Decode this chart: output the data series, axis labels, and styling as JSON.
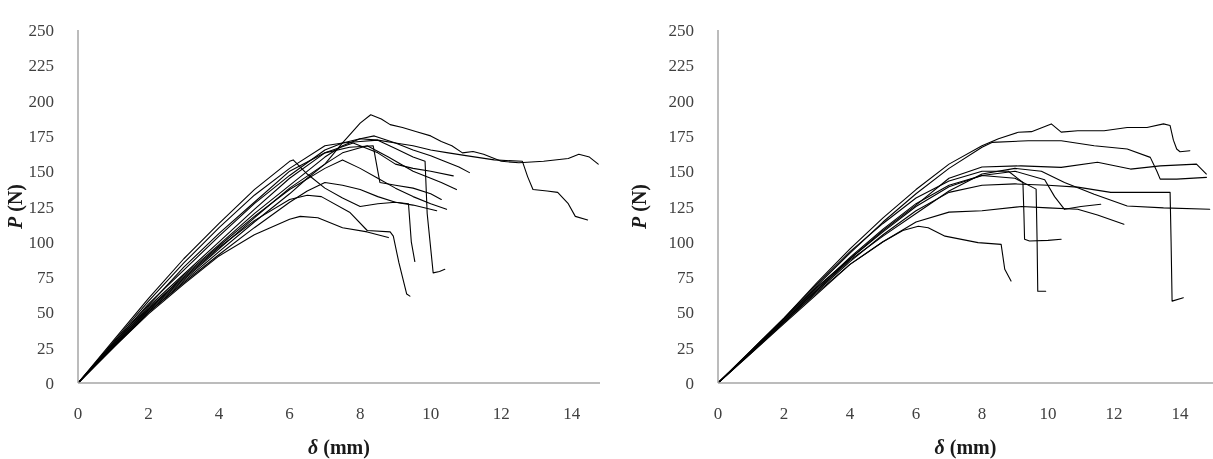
{
  "chart_data": [
    {
      "type": "line",
      "xlabel": "δ (mm)",
      "ylabel": "P (N)",
      "xlim": [
        0,
        14.8
      ],
      "xticks": [
        0,
        2,
        4,
        6,
        8,
        10,
        12,
        14
      ],
      "ylim": [
        0,
        250
      ],
      "yticks": [
        0,
        25,
        50,
        75,
        100,
        125,
        150,
        175,
        200,
        225,
        250
      ],
      "series": [
        {
          "color": "#000000",
          "x": [
            0,
            1,
            2,
            3,
            4,
            5,
            6,
            6.5,
            7,
            7.5,
            8,
            8.3,
            8.6,
            8.85,
            9.2,
            9.6,
            10,
            10.3,
            10.6,
            10.9,
            11.2,
            11.5,
            12,
            12.5,
            13.2,
            13.9,
            14.2,
            14.5,
            14.75
          ],
          "values": [
            0,
            25,
            50,
            72,
            93,
            114,
            134,
            145,
            155,
            170,
            184,
            190,
            187,
            183,
            181,
            178,
            175,
            171,
            168,
            163,
            164,
            162,
            157,
            156,
            157,
            159,
            162,
            160,
            155
          ]
        },
        {
          "color": "#000000",
          "x": [
            0,
            1,
            2,
            3,
            4,
            5,
            6,
            7,
            7.5,
            8,
            8.5,
            9,
            9.5,
            10,
            10.5,
            11,
            11.8,
            12.6,
            12.75,
            12.9,
            13.3,
            13.6,
            13.9,
            14.1,
            14.45
          ],
          "values": [
            0,
            28,
            56,
            80,
            104,
            127,
            147,
            165,
            170,
            173,
            172,
            170,
            168,
            165,
            163,
            161,
            158,
            157,
            146,
            137,
            136,
            135,
            127,
            118,
            115.5
          ]
        },
        {
          "color": "#000000",
          "x": [
            0,
            1,
            2,
            3,
            4,
            5,
            6,
            7,
            7.5,
            8,
            8.4,
            9,
            9.5,
            10,
            10.3,
            10.8,
            11.1
          ],
          "values": [
            0,
            26,
            52,
            76,
            98,
            120,
            140,
            160,
            168,
            173,
            175,
            170,
            165,
            161,
            158,
            153,
            149
          ]
        },
        {
          "color": "#000000",
          "x": [
            0,
            1,
            2,
            3,
            4,
            5,
            6,
            7,
            7.5,
            8.2,
            8.8,
            9.5,
            10,
            10.3,
            10.73
          ],
          "values": [
            0,
            26,
            51,
            73,
            95,
            117,
            138,
            155,
            163,
            168,
            160,
            150,
            145,
            142,
            137
          ]
        },
        {
          "color": "#000000",
          "x": [
            0,
            1,
            2,
            3,
            4,
            5,
            6,
            7,
            7.8,
            8.5,
            9,
            9.5,
            10,
            10.64
          ],
          "values": [
            0,
            27,
            54,
            77,
            100,
            123,
            145,
            163,
            170,
            163,
            155,
            152,
            150,
            146.7
          ]
        },
        {
          "color": "#000000",
          "x": [
            0,
            1,
            2,
            3,
            4,
            5,
            6,
            7,
            7.5,
            8,
            8.5,
            9,
            9.5,
            10,
            10.45
          ],
          "values": [
            0,
            27,
            53,
            75,
            97,
            118,
            137,
            152,
            158,
            152,
            145,
            138,
            132,
            127,
            123
          ]
        },
        {
          "color": "#000000",
          "x": [
            0,
            1,
            2,
            3,
            4,
            5,
            6,
            6.5,
            7,
            7.5,
            8,
            8.5,
            9,
            9.5,
            10.17
          ],
          "values": [
            0,
            25,
            50,
            71,
            91,
            110,
            128,
            136,
            142,
            140,
            137,
            132,
            128,
            126,
            122
          ]
        },
        {
          "color": "#000000",
          "x": [
            0,
            1,
            2,
            3,
            4,
            5,
            6,
            7,
            7.5,
            8,
            8.5,
            9,
            9.5,
            9.84,
            9.9,
            10.07,
            10.25,
            10.4
          ],
          "values": [
            0,
            29,
            58,
            85,
            110,
            133,
            152,
            168,
            170,
            171,
            172,
            166,
            160,
            157,
            120,
            78,
            79,
            80.5
          ]
        },
        {
          "color": "#000000",
          "x": [
            0,
            1,
            2,
            3,
            4,
            5,
            6,
            6.1,
            6.5,
            7,
            7.5,
            8,
            8.5,
            9,
            9.37,
            9.45,
            9.55
          ],
          "values": [
            0,
            30,
            60,
            88,
            113,
            137,
            157,
            158,
            148,
            138,
            131,
            125,
            127,
            128,
            127,
            100,
            86
          ]
        },
        {
          "color": "#000000",
          "x": [
            0,
            1,
            2,
            3,
            4,
            5,
            6,
            6.3,
            6.8,
            7.5,
            8.2,
            8.5,
            8.8
          ],
          "values": [
            0,
            25,
            49,
            70,
            90,
            105,
            116,
            118,
            117,
            110,
            107,
            105,
            103
          ]
        },
        {
          "color": "#000000",
          "x": [
            0,
            1,
            2,
            3,
            4,
            5,
            6,
            6.5,
            6.9,
            7.7,
            8.2,
            8.85,
            8.94,
            9.1,
            9.32,
            9.41
          ],
          "values": [
            0,
            26,
            52,
            74,
            96,
            115,
            130,
            133,
            132,
            121,
            108,
            107,
            104,
            85,
            63,
            61.5
          ]
        },
        {
          "color": "#000000",
          "x": [
            0,
            1,
            2,
            3,
            4,
            5,
            6,
            7,
            7.7,
            8.37,
            8.5,
            8.56,
            9,
            9.5,
            10,
            10.3
          ],
          "values": [
            0,
            28,
            55,
            82,
            106,
            128,
            150,
            163,
            167,
            168,
            150,
            142,
            140,
            138,
            134,
            130
          ]
        }
      ]
    },
    {
      "type": "line",
      "xlabel": "δ (mm)",
      "ylabel": "P (N)",
      "xlim": [
        0,
        15
      ],
      "xticks": [
        0,
        2,
        4,
        6,
        8,
        10,
        12,
        14
      ],
      "ylim": [
        0,
        250
      ],
      "yticks": [
        0,
        25,
        50,
        75,
        100,
        125,
        150,
        175,
        200,
        225,
        250
      ],
      "series": [
        {
          "color": "#000000",
          "x": [
            0,
            1,
            2,
            3,
            4,
            5,
            6,
            7,
            8,
            8.5,
            9.1,
            9.5,
            10.1,
            10.4,
            10.9,
            11.7,
            12.4,
            13,
            13.5,
            13.7,
            13.8,
            13.9,
            14,
            14.3
          ],
          "values": [
            0,
            23,
            46,
            71,
            95,
            117,
            137,
            155,
            168,
            173,
            177.6,
            178,
            183.5,
            177.7,
            178.7,
            178.7,
            181,
            181,
            183.5,
            182.3,
            172,
            165.7,
            163.8,
            164.5
          ]
        },
        {
          "color": "#000000",
          "x": [
            0,
            1,
            2,
            3,
            4,
            5,
            6,
            7,
            8,
            8.3,
            9.4,
            10.4,
            11.4,
            12.4,
            13.1,
            13.3,
            13.4,
            13.9,
            14.8
          ],
          "values": [
            0,
            22,
            45,
            69,
            92,
            114,
            134,
            152,
            167,
            170.4,
            171.6,
            171.6,
            168,
            165.7,
            159.8,
            150,
            144.4,
            144.4,
            145.6
          ]
        },
        {
          "color": "#000000",
          "x": [
            0,
            1,
            2,
            3,
            4,
            5,
            6,
            7,
            8,
            9.18,
            10.4,
            11.5,
            12.5,
            13.4,
            14.5,
            14.8
          ],
          "values": [
            0,
            22,
            44,
            66,
            88,
            108,
            126,
            145,
            153,
            153.8,
            152.7,
            156.3,
            151.5,
            153.8,
            155,
            148
          ]
        },
        {
          "color": "#000000",
          "x": [
            0,
            1,
            2,
            3,
            4,
            5,
            6,
            7,
            8,
            9,
            10,
            10.9,
            11.9,
            13,
            13.7,
            13.73,
            13.76,
            14.1
          ],
          "values": [
            0,
            21,
            43,
            65,
            86,
            105,
            122,
            135,
            140,
            141,
            140,
            138.7,
            135,
            135,
            135,
            100,
            58,
            60.4
          ]
        },
        {
          "color": "#000000",
          "x": [
            0,
            1,
            2,
            3,
            4,
            5,
            6,
            7,
            8,
            9,
            9.8,
            10.5,
            11.4,
            12.4,
            13.5,
            14.9
          ],
          "values": [
            0,
            22,
            44,
            66,
            87,
            104,
            120,
            136,
            148,
            152,
            150,
            142,
            133.7,
            125.4,
            124,
            123
          ]
        },
        {
          "color": "#000000",
          "x": [
            0,
            1,
            2,
            3,
            4,
            5,
            6,
            7,
            8,
            9.2,
            10,
            10.9,
            11.5,
            12.3
          ],
          "values": [
            0,
            22,
            43,
            64,
            84,
            100,
            114,
            121,
            122,
            125,
            124,
            123,
            119,
            112.4
          ]
        },
        {
          "color": "#000000",
          "x": [
            0,
            1,
            2,
            3,
            4,
            5,
            6,
            7,
            8,
            8.8,
            9.24,
            9.27,
            9.29,
            9.44,
            10,
            10.4
          ],
          "values": [
            0,
            23,
            46,
            70,
            93,
            113,
            131,
            143,
            150,
            150,
            142,
            120,
            101.8,
            100.6,
            101,
            101.8
          ]
        },
        {
          "color": "#000000",
          "x": [
            0,
            1,
            2,
            3,
            4,
            5,
            6,
            7,
            8,
            9,
            9.64,
            9.67,
            9.69,
            9.93
          ],
          "values": [
            0,
            22,
            44,
            67,
            89,
            109,
            127,
            140,
            147,
            145,
            137.3,
            100,
            65,
            65
          ]
        },
        {
          "color": "#000000",
          "x": [
            0,
            1,
            2,
            3,
            4,
            5,
            5.6,
            6.07,
            6.37,
            6.88,
            7.88,
            8.58,
            8.69,
            8.88
          ],
          "values": [
            0,
            21,
            42,
            63,
            84,
            100,
            108,
            111,
            110,
            104,
            99.4,
            98.2,
            80.5,
            72.2
          ]
        },
        {
          "color": "#000000",
          "x": [
            0,
            1,
            2,
            3,
            4,
            5,
            6,
            7,
            8,
            9,
            9.9,
            10.2,
            10.5,
            11,
            11.6
          ],
          "values": [
            0,
            22,
            45,
            68,
            88,
            107,
            125,
            139,
            147,
            150,
            144,
            132,
            123,
            125,
            126.6
          ]
        }
      ]
    }
  ]
}
